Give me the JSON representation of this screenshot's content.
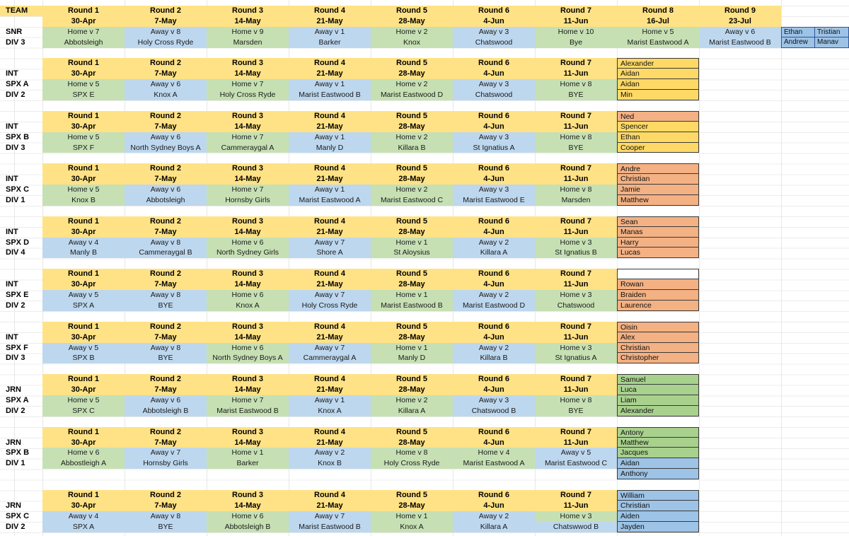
{
  "corner_label": "TEAM",
  "palette": {
    "header_fill": "#FFE285",
    "home_fill": "#C6E0B4",
    "away_fill": "#BDD7EE",
    "player_orange": "#F4B183",
    "player_yellow": "#FFD966",
    "player_green": "#A9D18E",
    "player_blue": "#9DC3E6",
    "grid_line": "#ECECEC",
    "name_border": "#3a3a3a",
    "mini_border": "#2F5597"
  },
  "round_headers": [
    {
      "label": "Round 1",
      "date": "30-Apr"
    },
    {
      "label": "Round 2",
      "date": "7-May"
    },
    {
      "label": "Round 3",
      "date": "14-May"
    },
    {
      "label": "Round 4",
      "date": "21-May"
    },
    {
      "label": "Round 5",
      "date": "28-May"
    },
    {
      "label": "Round 6",
      "date": "4-Jun"
    },
    {
      "label": "Round 7",
      "date": "11-Jun"
    },
    {
      "label": "Round 8",
      "date": "16-Jul"
    },
    {
      "label": "Round 9",
      "date": "23-Jul"
    }
  ],
  "blocks": [
    {
      "labels": [
        "SNR",
        "DIV 3"
      ],
      "names_layout": "grid2x2",
      "fixtures": [
        {
          "fixture": "Home v 7",
          "opponent": "Abbotsleigh",
          "type": "home"
        },
        {
          "fixture": "Away v 8",
          "opponent": "Holy Cross Ryde",
          "type": "away"
        },
        {
          "fixture": "Home v 9",
          "opponent": "Marsden",
          "type": "home"
        },
        {
          "fixture": "Away v 1",
          "opponent": "Barker",
          "type": "away"
        },
        {
          "fixture": "Home v 2",
          "opponent": "Knox",
          "type": "home"
        },
        {
          "fixture": "Away v 3",
          "opponent": "Chatswood",
          "type": "away"
        },
        {
          "fixture": "Home v 10",
          "opponent": "Bye",
          "type": "home"
        },
        {
          "fixture": "Home v 5",
          "opponent": "Marist Eastwood A",
          "type": "home"
        },
        {
          "fixture": "Away v 6",
          "opponent": "Marist Eastwood B",
          "type": "away"
        }
      ],
      "players": [
        {
          "name": "Ethan",
          "color": "blue"
        },
        {
          "name": "Tristian",
          "color": "blue"
        },
        {
          "name": "Andrew",
          "color": "blue"
        },
        {
          "name": "Manav",
          "color": "blue"
        }
      ]
    },
    {
      "labels": [
        "INT",
        "SPX A",
        "DIV 2"
      ],
      "fixtures": [
        {
          "fixture": "Home v 5",
          "opponent": "SPX E",
          "type": "home"
        },
        {
          "fixture": "Away v 6",
          "opponent": "Knox A",
          "type": "away"
        },
        {
          "fixture": "Home v 7",
          "opponent": "Holy Cross Ryde",
          "type": "home"
        },
        {
          "fixture": "Away v 1",
          "opponent": "Marist Eastwood B",
          "type": "away"
        },
        {
          "fixture": "Home v 2",
          "opponent": "Marist Eastwood D",
          "type": "home"
        },
        {
          "fixture": "Away v 3",
          "opponent": "Chatswood",
          "type": "away"
        },
        {
          "fixture": "Home v 8",
          "opponent": "BYE",
          "type": "home"
        }
      ],
      "players": [
        {
          "name": "Alexander",
          "color": "yellow"
        },
        {
          "name": "Aidan",
          "color": "yellow"
        },
        {
          "name": "Aidan",
          "color": "yellow"
        },
        {
          "name": "Min",
          "color": "yellow"
        }
      ]
    },
    {
      "labels": [
        "INT",
        "SPX B",
        "DIV 3"
      ],
      "fixtures": [
        {
          "fixture": "Home v 5",
          "opponent": "SPX F",
          "type": "home"
        },
        {
          "fixture": "Away v 6",
          "opponent": "North Sydney Boys A",
          "type": "away"
        },
        {
          "fixture": "Home v 7",
          "opponent": "Cammeraygal A",
          "type": "home"
        },
        {
          "fixture": "Away v 1",
          "opponent": "Manly D",
          "type": "away"
        },
        {
          "fixture": "Home v 2",
          "opponent": "Killara B",
          "type": "home"
        },
        {
          "fixture": "Away v 3",
          "opponent": "St Ignatius A",
          "type": "away"
        },
        {
          "fixture": "Home v 8",
          "opponent": "BYE",
          "type": "home"
        }
      ],
      "players": [
        {
          "name": "Ned",
          "color": "orange"
        },
        {
          "name": "Spencer",
          "color": "yellow"
        },
        {
          "name": "Ethan",
          "color": "yellow"
        },
        {
          "name": "Cooper",
          "color": "yellow"
        }
      ]
    },
    {
      "labels": [
        "INT",
        "SPX C",
        "DIV 1"
      ],
      "fixtures": [
        {
          "fixture": "Home v 5",
          "opponent": "Knox B",
          "type": "home"
        },
        {
          "fixture": "Away v 6",
          "opponent": "Abbotsleigh",
          "type": "away"
        },
        {
          "fixture": "Home v 7",
          "opponent": "Hornsby Girls",
          "type": "home"
        },
        {
          "fixture": "Away v 1",
          "opponent": "Marist Eastwood A",
          "type": "away"
        },
        {
          "fixture": "Home v 2",
          "opponent": "Marist Eastwood C",
          "type": "home"
        },
        {
          "fixture": "Away v 3",
          "opponent": "Marist Eastwood E",
          "type": "away"
        },
        {
          "fixture": "Home v 8",
          "opponent": "Marsden",
          "type": "home"
        }
      ],
      "players": [
        {
          "name": "Andre",
          "color": "orange"
        },
        {
          "name": "Christian",
          "color": "orange"
        },
        {
          "name": "Jamie",
          "color": "orange"
        },
        {
          "name": "Matthew",
          "color": "orange"
        }
      ]
    },
    {
      "labels": [
        "INT",
        "SPX D",
        "DIV 4"
      ],
      "fixtures": [
        {
          "fixture": "Away v 4",
          "opponent": "Manly B",
          "type": "away"
        },
        {
          "fixture": "Away v 8",
          "opponent": "Cammeraygal B",
          "type": "away"
        },
        {
          "fixture": "Home v 6",
          "opponent": "North Sydney Girls",
          "type": "home"
        },
        {
          "fixture": "Away v 7",
          "opponent": "Shore A",
          "type": "away"
        },
        {
          "fixture": "Home v 1",
          "opponent": "St Aloysius",
          "type": "home"
        },
        {
          "fixture": "Away v 2",
          "opponent": "Killara A",
          "type": "away"
        },
        {
          "fixture": "Home v 3",
          "opponent": "St Ignatius B",
          "type": "home"
        }
      ],
      "players": [
        {
          "name": "Sean",
          "color": "orange"
        },
        {
          "name": "Manas",
          "color": "orange"
        },
        {
          "name": "Harry",
          "color": "orange"
        },
        {
          "name": "Lucas",
          "color": "orange"
        }
      ]
    },
    {
      "labels": [
        "INT",
        "SPX E",
        "DIV 2"
      ],
      "fixtures": [
        {
          "fixture": "Away v 5",
          "opponent": "SPX A",
          "type": "away"
        },
        {
          "fixture": "Away v 8",
          "opponent": "BYE",
          "type": "away"
        },
        {
          "fixture": "Home v 6",
          "opponent": "Knox A",
          "type": "home"
        },
        {
          "fixture": "Away v 7",
          "opponent": "Holy Cross Ryde",
          "type": "away"
        },
        {
          "fixture": "Home v 1",
          "opponent": "Marist Eastwood B",
          "type": "home"
        },
        {
          "fixture": "Away v 2",
          "opponent": "Marist Eastwood D",
          "type": "away"
        },
        {
          "fixture": "Home v 3",
          "opponent": "Chatswood",
          "type": "home"
        }
      ],
      "players": [
        {
          "name": "",
          "color": "none"
        },
        {
          "name": "Rowan",
          "color": "orange"
        },
        {
          "name": "Braiden",
          "color": "orange"
        },
        {
          "name": "Laurence",
          "color": "orange"
        }
      ]
    },
    {
      "labels": [
        "INT",
        "SPX F",
        "DIV 3"
      ],
      "fixtures": [
        {
          "fixture": "Away v 5",
          "opponent": "SPX B",
          "type": "away"
        },
        {
          "fixture": "Away v 8",
          "opponent": "BYE",
          "type": "away"
        },
        {
          "fixture": "Home v 6",
          "opponent": "North Sydney Boys A",
          "type": "home"
        },
        {
          "fixture": "Away v 7",
          "opponent": "Cammeraygal A",
          "type": "away"
        },
        {
          "fixture": "Home v 1",
          "opponent": "Manly D",
          "type": "home"
        },
        {
          "fixture": "Away v 2",
          "opponent": "Killara B",
          "type": "away"
        },
        {
          "fixture": "Home v 3",
          "opponent": "St Ignatius A",
          "type": "home"
        }
      ],
      "players": [
        {
          "name": "Oisin",
          "color": "orange"
        },
        {
          "name": "Alex",
          "color": "orange"
        },
        {
          "name": "Christian",
          "color": "orange"
        },
        {
          "name": "Christopher",
          "color": "orange"
        }
      ]
    },
    {
      "labels": [
        "JRN",
        "SPX A",
        "DIV 2"
      ],
      "fixtures": [
        {
          "fixture": "Home v 5",
          "opponent": "SPX C",
          "type": "home"
        },
        {
          "fixture": "Away v 6",
          "opponent": "Abbotsleigh B",
          "type": "away"
        },
        {
          "fixture": "Home v 7",
          "opponent": "Marist Eastwood B",
          "type": "home"
        },
        {
          "fixture": "Away v 1",
          "opponent": "Knox A",
          "type": "away"
        },
        {
          "fixture": "Home v 2",
          "opponent": "Killara A",
          "type": "home"
        },
        {
          "fixture": "Away v 3",
          "opponent": "Chatswood B",
          "type": "away"
        },
        {
          "fixture": "Home v 8",
          "opponent": "BYE",
          "type": "home"
        }
      ],
      "players": [
        {
          "name": "Samuel",
          "color": "green"
        },
        {
          "name": "Luca",
          "color": "green"
        },
        {
          "name": "Liam",
          "color": "green"
        },
        {
          "name": "Alexander",
          "color": "green"
        }
      ]
    },
    {
      "labels": [
        "JRN",
        "SPX B",
        "DIV 1"
      ],
      "fixtures": [
        {
          "fixture": "Home v 6",
          "opponent": "Abbostleigh A",
          "type": "home"
        },
        {
          "fixture": "Away v 7",
          "opponent": "Hornsby Girls",
          "type": "away"
        },
        {
          "fixture": "Home v 1",
          "opponent": "Barker",
          "type": "home"
        },
        {
          "fixture": "Away v 2",
          "opponent": "Knox B",
          "type": "away"
        },
        {
          "fixture": "Home v 8",
          "opponent": "Holy Cross Ryde",
          "type": "home"
        },
        {
          "fixture": "Home v 4",
          "opponent": "Marist Eastwood A",
          "type": "home"
        },
        {
          "fixture": "Away v 5",
          "opponent": "Marist Eastwood C",
          "type": "away"
        }
      ],
      "players": [
        {
          "name": "Antony",
          "color": "green"
        },
        {
          "name": "Matthew",
          "color": "green"
        },
        {
          "name": "Jacques",
          "color": "green"
        },
        {
          "name": "Aidan",
          "color": "blue"
        },
        {
          "name": "Anthony",
          "color": "blue"
        }
      ]
    },
    {
      "labels": [
        "JRN",
        "SPX C",
        "DIV 2"
      ],
      "fixtures": [
        {
          "fixture": "Away v 4",
          "opponent": "SPX A",
          "type": "away"
        },
        {
          "fixture": "Away v 8",
          "opponent": "BYE",
          "type": "away"
        },
        {
          "fixture": "Home v 6",
          "opponent": "Abbotsleigh B",
          "type": "home"
        },
        {
          "fixture": "Away v 7",
          "opponent": "Marist Eastwood B",
          "type": "away"
        },
        {
          "fixture": "Home v 1",
          "opponent": "Knox A",
          "type": "home"
        },
        {
          "fixture": "Away v 2",
          "opponent": "Killara A",
          "type": "away"
        },
        {
          "fixture": "Home v 3",
          "opponent": "Chatswwod B",
          "type": "home",
          "opponent_type": "away"
        }
      ],
      "players": [
        {
          "name": "William",
          "color": "blue"
        },
        {
          "name": "Christian",
          "color": "blue"
        },
        {
          "name": "Aiden",
          "color": "blue"
        },
        {
          "name": "Jayden",
          "color": "blue"
        }
      ]
    }
  ]
}
